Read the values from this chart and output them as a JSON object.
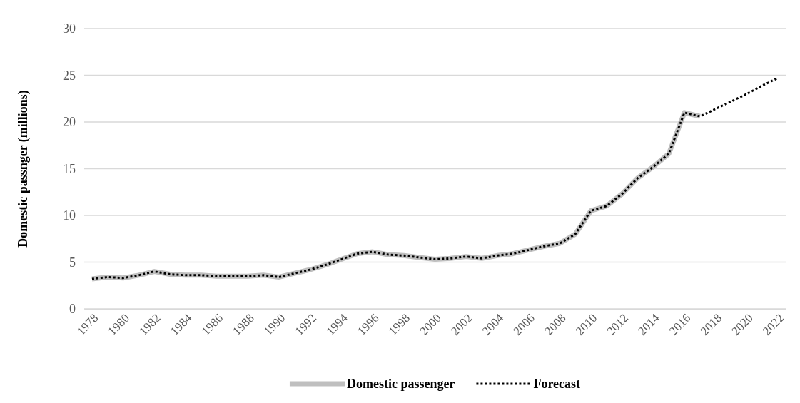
{
  "chart_data": {
    "type": "line",
    "ylabel": "Domestic passnger (millions)",
    "categories": [
      "1978",
      null,
      "1980",
      null,
      "1982",
      null,
      "1984",
      null,
      "1986",
      null,
      "1988",
      null,
      "1990",
      null,
      "1992",
      null,
      "1994",
      null,
      "1996",
      null,
      "1998",
      null,
      "2000",
      null,
      "2002",
      null,
      "2004",
      null,
      "2006",
      null,
      "2008",
      null,
      "2010",
      null,
      "2012",
      null,
      "2014",
      null,
      "2016",
      null,
      "2018",
      null,
      "2020",
      null,
      "2022"
    ],
    "series": [
      {
        "name": "Domestic passenger",
        "color": "#bfbfbf",
        "line_style": "solid",
        "values": [
          3.2,
          3.4,
          3.3,
          3.6,
          4.0,
          3.7,
          3.6,
          3.6,
          3.5,
          3.5,
          3.5,
          3.6,
          3.4,
          3.8,
          4.2,
          4.7,
          5.3,
          5.9,
          6.1,
          5.8,
          5.7,
          5.5,
          5.3,
          5.4,
          5.6,
          5.4,
          5.7,
          5.9,
          6.3,
          6.7,
          7.0,
          8.0,
          10.5,
          11.0,
          12.3,
          14.0,
          15.2,
          16.6,
          21.0,
          20.6,
          null,
          null,
          null,
          null,
          null
        ]
      },
      {
        "name": "Forecast",
        "color": "#000000",
        "line_style": "dotted",
        "values": [
          3.2,
          3.4,
          3.3,
          3.6,
          4.0,
          3.7,
          3.6,
          3.6,
          3.5,
          3.5,
          3.5,
          3.6,
          3.4,
          3.8,
          4.2,
          4.7,
          5.3,
          5.9,
          6.1,
          5.8,
          5.7,
          5.5,
          5.3,
          5.4,
          5.6,
          5.4,
          5.7,
          5.9,
          6.3,
          6.7,
          7.0,
          8.0,
          10.5,
          11.0,
          12.3,
          14.0,
          15.2,
          16.6,
          21.0,
          20.6,
          21.4,
          22.2,
          23.0,
          23.9,
          24.7
        ]
      }
    ],
    "ylim": [
      0,
      30
    ],
    "yticks": [
      0,
      5,
      10,
      15,
      20,
      25,
      30
    ],
    "grid": "y",
    "legend": "bottom",
    "marker": "none"
  }
}
